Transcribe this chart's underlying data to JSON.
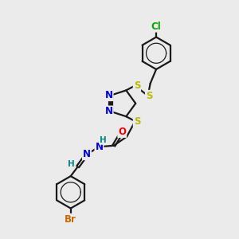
{
  "bg_color": "#ebebeb",
  "bond_color": "#1a1a1a",
  "bond_width": 1.6,
  "atom_colors": {
    "N": "#0000ee",
    "S": "#bbbb00",
    "O": "#ee0000",
    "Cl": "#00aa00",
    "Br": "#cc6600",
    "H": "#008888",
    "C": "#1a1a1a"
  },
  "font_size": 8.5
}
